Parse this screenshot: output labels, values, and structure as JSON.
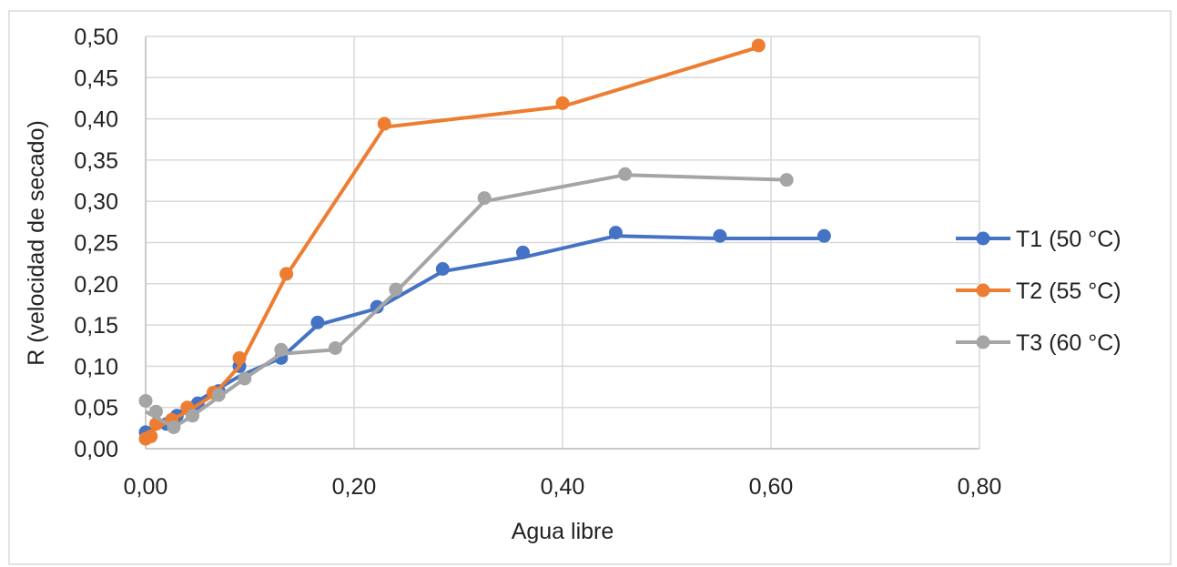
{
  "chart_data": {
    "type": "scatter",
    "title": "",
    "xlabel": "Agua libre",
    "ylabel": "R (velocidad de secado)",
    "xlim": [
      0,
      0.8
    ],
    "ylim": [
      0,
      0.5
    ],
    "x_ticks": [
      "0,00",
      "0,20",
      "0,40",
      "0,60",
      "0,80"
    ],
    "y_ticks": [
      "0,00",
      "0,05",
      "0,10",
      "0,15",
      "0,20",
      "0,25",
      "0,30",
      "0,35",
      "0,40",
      "0,45",
      "0,50"
    ],
    "grid": true,
    "legend_position": "right",
    "series": [
      {
        "name": "T1 (50 °C)",
        "color": "#4472C4",
        "points": [
          {
            "x": 0.0,
            "y": 0.02
          },
          {
            "x": 0.02,
            "y": 0.03
          },
          {
            "x": 0.03,
            "y": 0.04
          },
          {
            "x": 0.05,
            "y": 0.055
          },
          {
            "x": 0.07,
            "y": 0.07
          },
          {
            "x": 0.09,
            "y": 0.1
          },
          {
            "x": 0.13,
            "y": 0.11
          },
          {
            "x": 0.165,
            "y": 0.153
          },
          {
            "x": 0.222,
            "y": 0.172
          },
          {
            "x": 0.285,
            "y": 0.218
          },
          {
            "x": 0.362,
            "y": 0.238
          },
          {
            "x": 0.451,
            "y": 0.262
          },
          {
            "x": 0.551,
            "y": 0.258
          },
          {
            "x": 0.651,
            "y": 0.258
          }
        ],
        "trend": [
          {
            "x": 0.0,
            "y": 0.02
          },
          {
            "x": 0.09,
            "y": 0.088
          },
          {
            "x": 0.13,
            "y": 0.11
          },
          {
            "x": 0.165,
            "y": 0.15
          },
          {
            "x": 0.222,
            "y": 0.17
          },
          {
            "x": 0.285,
            "y": 0.215
          },
          {
            "x": 0.362,
            "y": 0.232
          },
          {
            "x": 0.451,
            "y": 0.258
          },
          {
            "x": 0.551,
            "y": 0.255
          },
          {
            "x": 0.651,
            "y": 0.255
          }
        ]
      },
      {
        "name": "T2 (55 °C)",
        "color": "#ED7D31",
        "points": [
          {
            "x": 0.0,
            "y": 0.012
          },
          {
            "x": 0.005,
            "y": 0.015
          },
          {
            "x": 0.01,
            "y": 0.03
          },
          {
            "x": 0.025,
            "y": 0.035
          },
          {
            "x": 0.04,
            "y": 0.05
          },
          {
            "x": 0.065,
            "y": 0.068
          },
          {
            "x": 0.09,
            "y": 0.11
          },
          {
            "x": 0.135,
            "y": 0.212
          },
          {
            "x": 0.229,
            "y": 0.394
          },
          {
            "x": 0.4,
            "y": 0.419
          },
          {
            "x": 0.588,
            "y": 0.489
          }
        ],
        "trend": [
          {
            "x": 0.0,
            "y": 0.012
          },
          {
            "x": 0.01,
            "y": 0.025
          },
          {
            "x": 0.04,
            "y": 0.045
          },
          {
            "x": 0.065,
            "y": 0.065
          },
          {
            "x": 0.09,
            "y": 0.1
          },
          {
            "x": 0.135,
            "y": 0.21
          },
          {
            "x": 0.229,
            "y": 0.39
          },
          {
            "x": 0.4,
            "y": 0.415
          },
          {
            "x": 0.588,
            "y": 0.487
          }
        ]
      },
      {
        "name": "T3 (60 °C)",
        "color": "#A5A5A5",
        "points": [
          {
            "x": 0.0,
            "y": 0.058
          },
          {
            "x": 0.01,
            "y": 0.045
          },
          {
            "x": 0.027,
            "y": 0.026
          },
          {
            "x": 0.045,
            "y": 0.04
          },
          {
            "x": 0.07,
            "y": 0.065
          },
          {
            "x": 0.095,
            "y": 0.085
          },
          {
            "x": 0.13,
            "y": 0.12
          },
          {
            "x": 0.182,
            "y": 0.122
          },
          {
            "x": 0.24,
            "y": 0.193
          },
          {
            "x": 0.325,
            "y": 0.304
          },
          {
            "x": 0.46,
            "y": 0.333
          },
          {
            "x": 0.615,
            "y": 0.326
          }
        ],
        "trend": [
          {
            "x": 0.0,
            "y": 0.045
          },
          {
            "x": 0.027,
            "y": 0.026
          },
          {
            "x": 0.045,
            "y": 0.04
          },
          {
            "x": 0.095,
            "y": 0.085
          },
          {
            "x": 0.13,
            "y": 0.115
          },
          {
            "x": 0.182,
            "y": 0.12
          },
          {
            "x": 0.24,
            "y": 0.19
          },
          {
            "x": 0.325,
            "y": 0.3
          },
          {
            "x": 0.46,
            "y": 0.332
          },
          {
            "x": 0.615,
            "y": 0.326
          }
        ]
      }
    ]
  }
}
